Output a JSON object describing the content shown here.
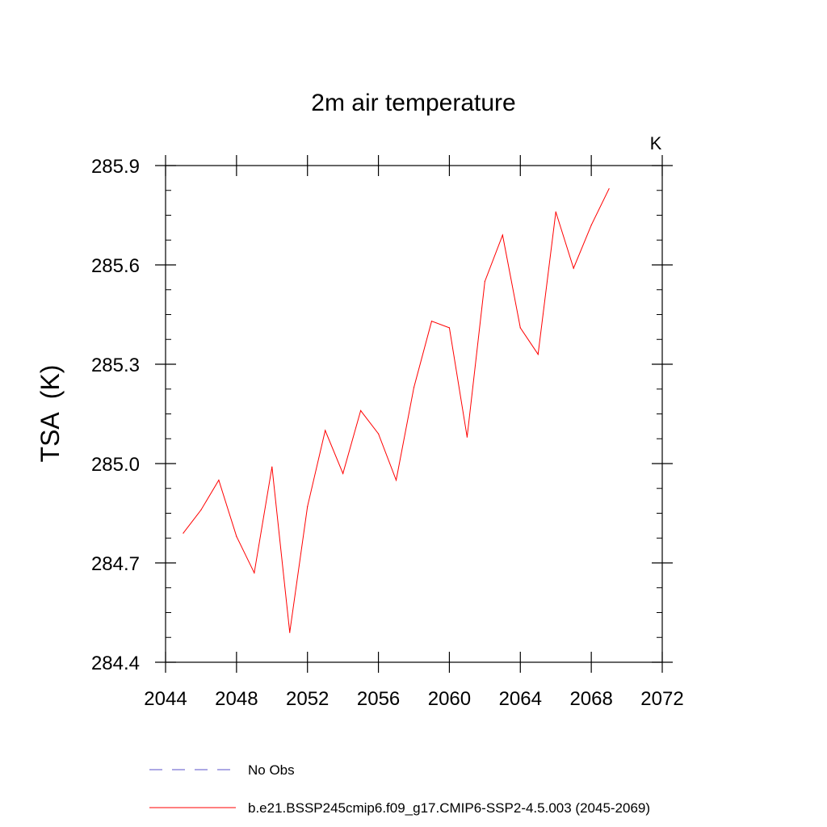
{
  "chart_data": {
    "type": "line",
    "title": "2m air temperature",
    "units": "K",
    "xlabel": "",
    "ylabel": "TSA  (K)",
    "xlim": [
      2044,
      2072
    ],
    "ylim": [
      284.4,
      285.9
    ],
    "x_ticks": [
      2044,
      2048,
      2052,
      2056,
      2060,
      2064,
      2068,
      2072
    ],
    "y_ticks": [
      284.4,
      284.7,
      285.0,
      285.3,
      285.6,
      285.9
    ],
    "x_tick_labels": [
      "2044",
      "2048",
      "2052",
      "2056",
      "2060",
      "2064",
      "2068",
      "2072"
    ],
    "y_tick_labels": [
      "284.4",
      "284.7",
      "285.0",
      "285.3",
      "285.6",
      "285.9"
    ],
    "grid": false,
    "series": [
      {
        "name": "b.e21.BSSP245cmip6.f09_g17.CMIP6-SSP2-4.5.003 (2045-2069)",
        "color": "#ff0000",
        "x": [
          2045,
          2046,
          2047,
          2048,
          2049,
          2050,
          2051,
          2052,
          2053,
          2054,
          2055,
          2056,
          2057,
          2058,
          2059,
          2060,
          2061,
          2062,
          2063,
          2064,
          2065,
          2066,
          2067,
          2068,
          2069
        ],
        "values": [
          284.79,
          284.86,
          284.95,
          284.78,
          284.67,
          284.99,
          284.49,
          284.87,
          285.1,
          284.97,
          285.16,
          285.09,
          284.95,
          285.23,
          285.43,
          285.41,
          285.08,
          285.55,
          285.69,
          285.41,
          285.33,
          285.76,
          285.59,
          285.72,
          285.83
        ]
      }
    ],
    "legend": [
      {
        "label": "No Obs",
        "color": "#5a50c8",
        "style": "dashed"
      },
      {
        "label": "b.e21.BSSP245cmip6.f09_g17.CMIP6-SSP2-4.5.003 (2045-2069)",
        "color": "#ff0000",
        "style": "solid"
      }
    ]
  }
}
